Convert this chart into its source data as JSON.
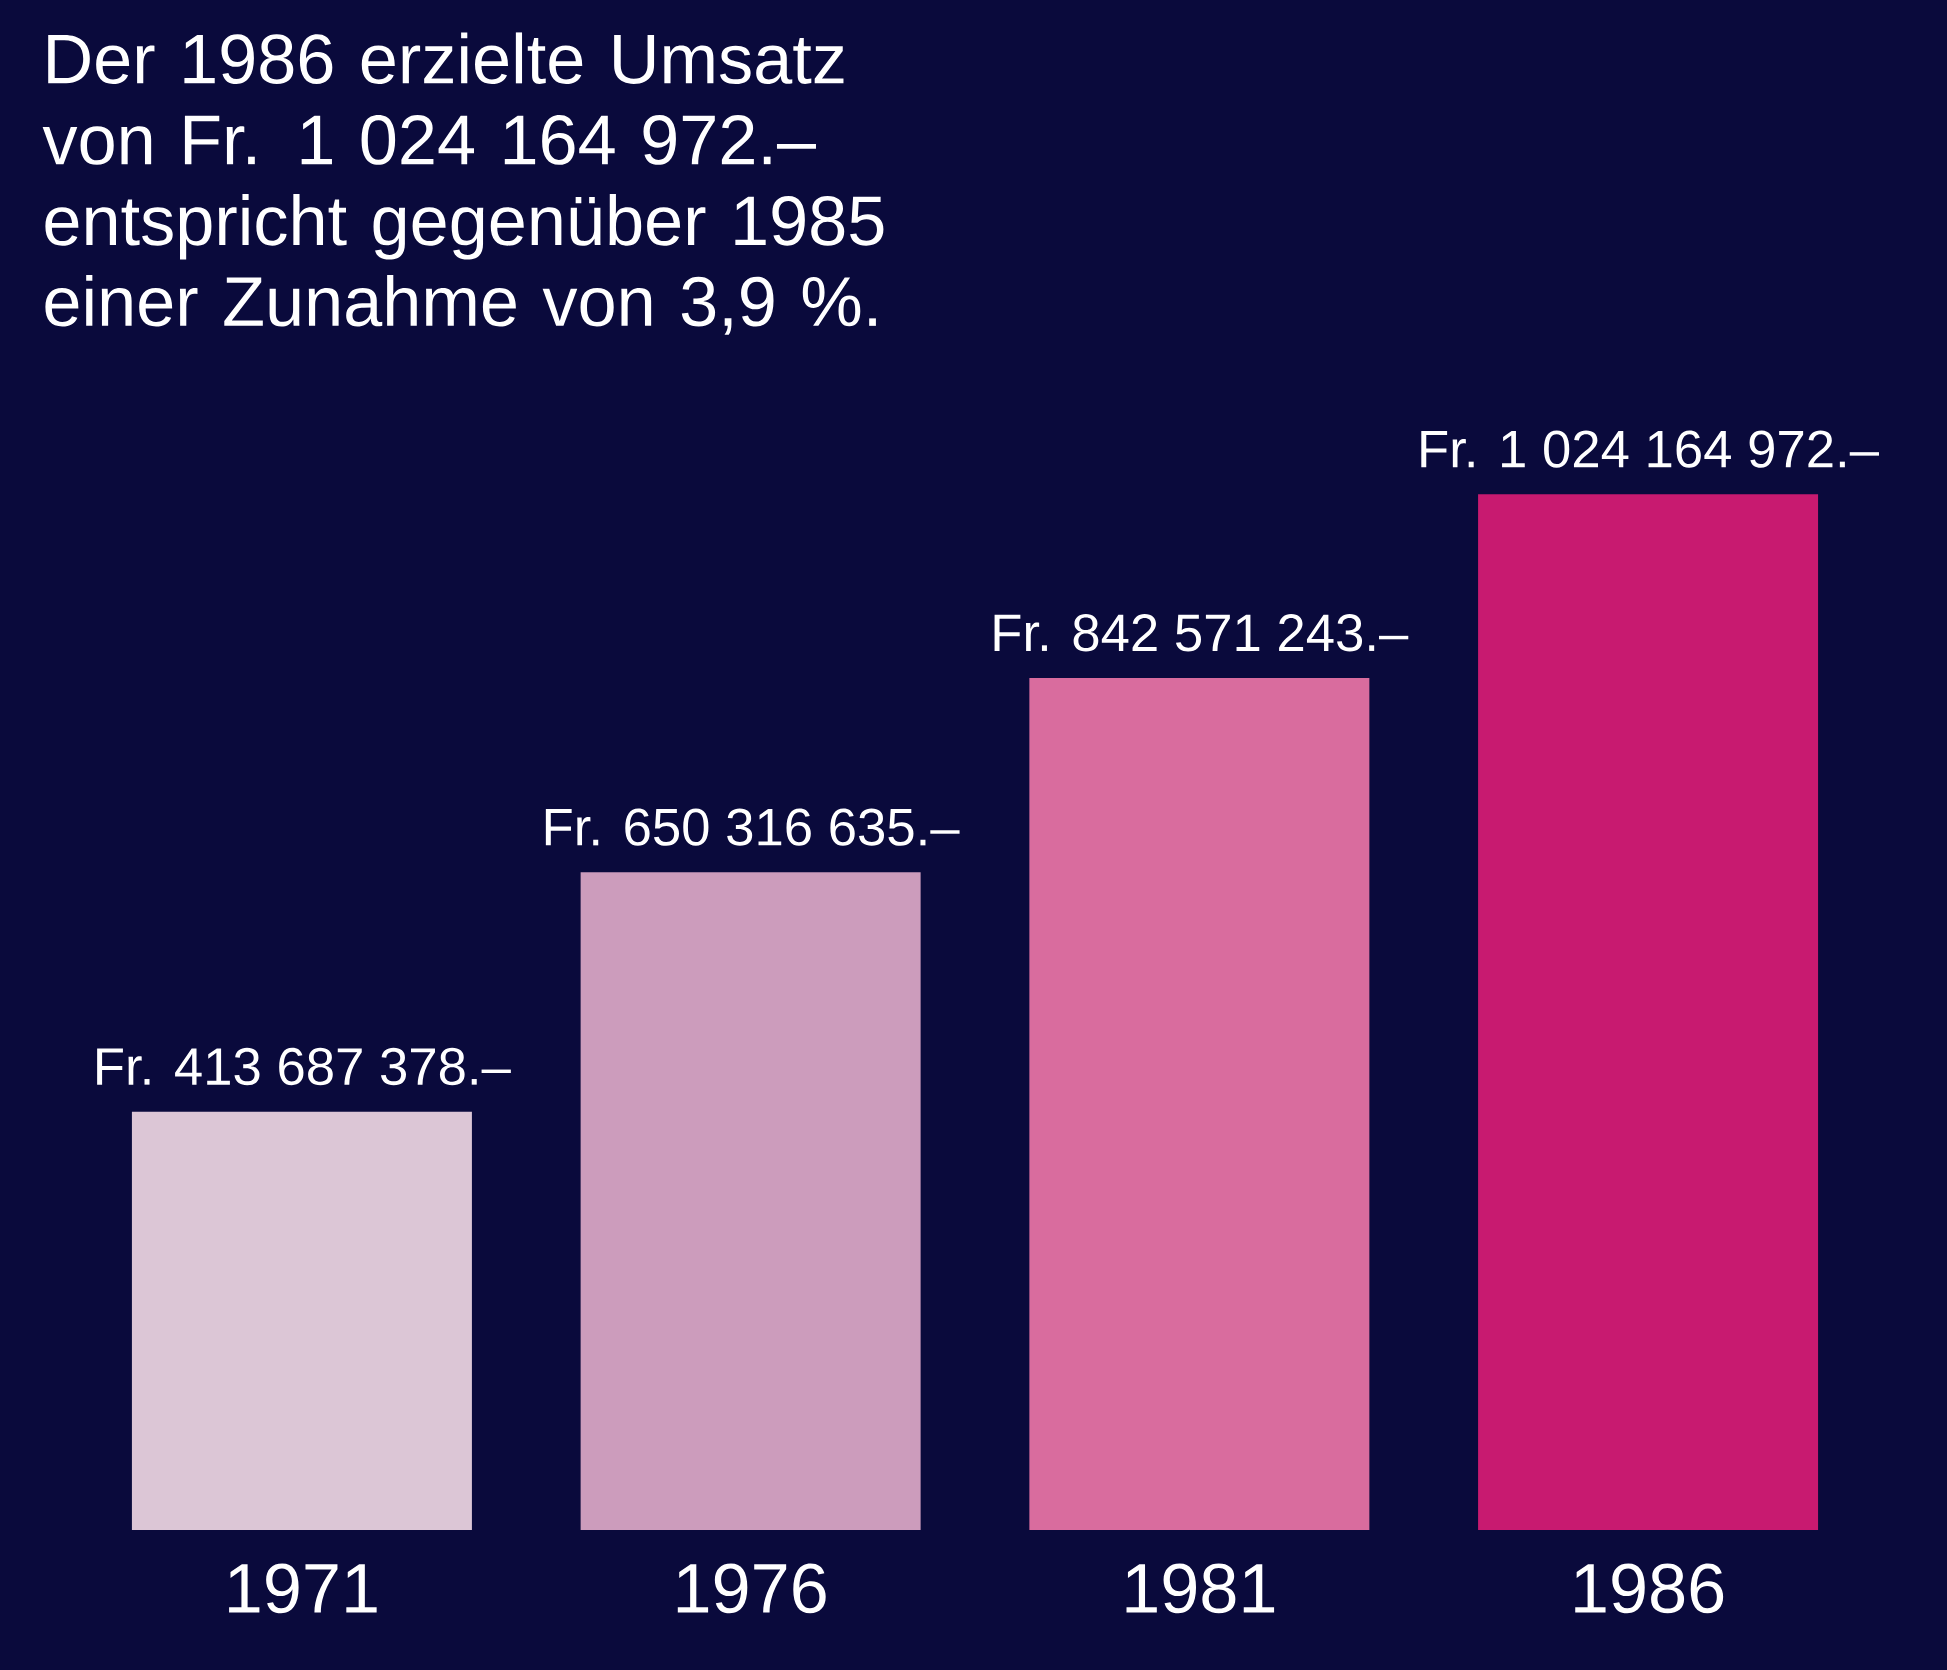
{
  "chart_data": {
    "type": "bar",
    "title": "Der 1986 erzielte Umsatz von Fr. 1 024 164 972.– entspricht gegenüber 1985 einer Zunahme von 3,9 %.",
    "categories": [
      "1971",
      "1976",
      "1981",
      "1986"
    ],
    "values": [
      413687378,
      650316635,
      842571243,
      1024164972
    ],
    "colors": [
      "#dcc6d6",
      "#cc9cbc",
      "#d96c9e",
      "#c81a70"
    ],
    "value_labels": [
      "Fr. 413 687 378.–",
      "Fr. 650 316 635.–",
      "Fr. 842 571 243.–",
      "Fr. 1 024 164 972.–"
    ]
  }
}
